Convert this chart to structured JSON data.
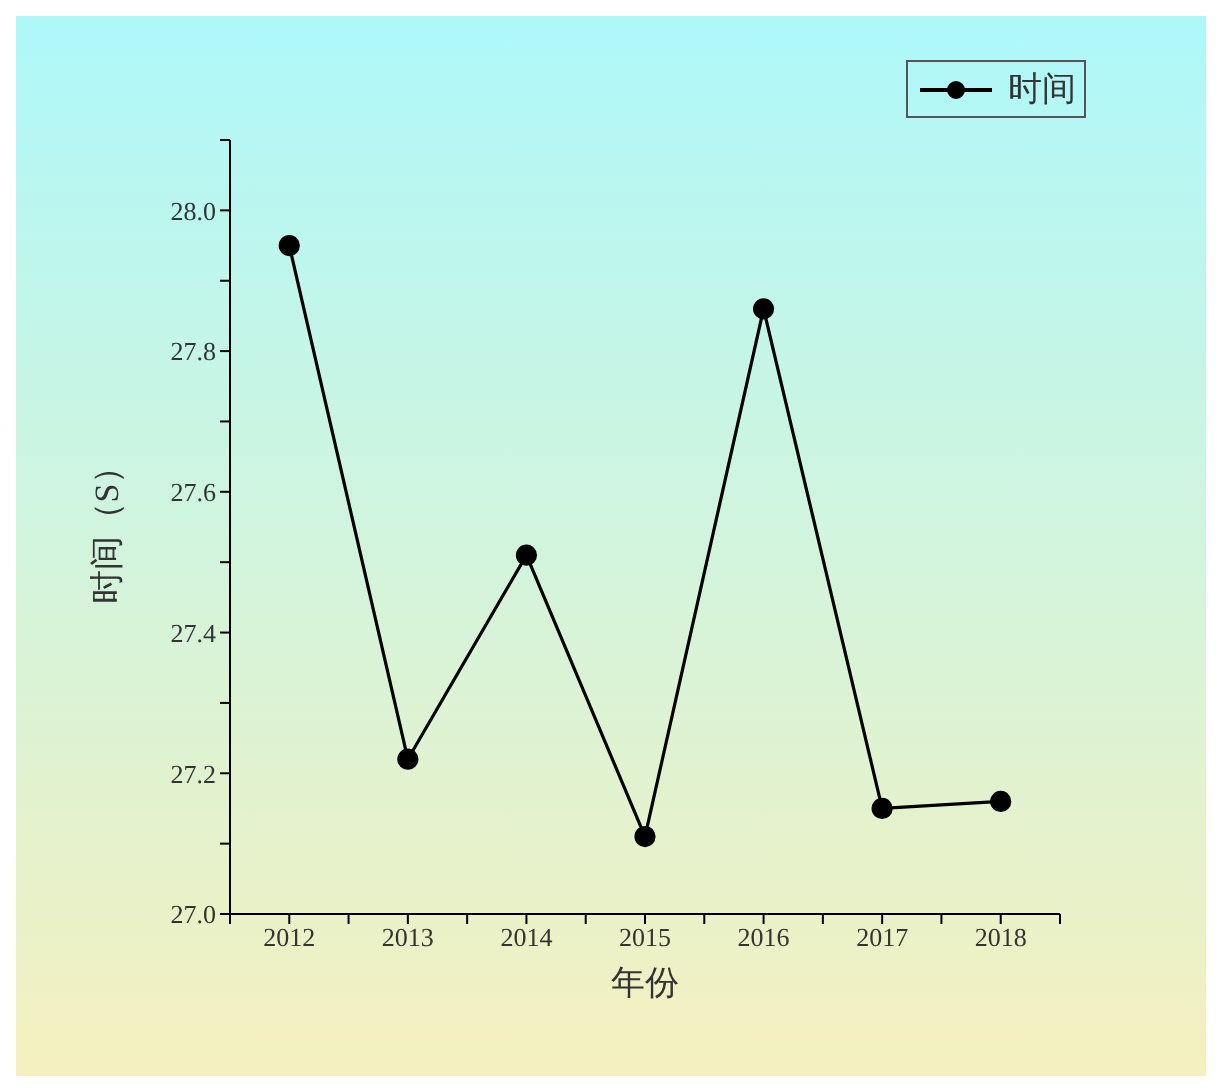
{
  "chart_data": {
    "type": "line",
    "xlabel": "年份",
    "ylabel": "时间（S）",
    "x": [
      2012,
      2013,
      2014,
      2015,
      2016,
      2017,
      2018
    ],
    "series": [
      {
        "name": "时间",
        "color": "#000000",
        "values": [
          27.95,
          27.22,
          27.51,
          27.11,
          27.86,
          27.15,
          27.16
        ]
      }
    ],
    "xlim": [
      2011.5,
      2018.5
    ],
    "xticks": [
      {
        "value": 2011.5,
        "label": null
      },
      2012,
      {
        "value": 2012.5,
        "label": null
      },
      2013,
      {
        "value": 2013.5,
        "label": null
      },
      2014,
      {
        "value": 2014.5,
        "label": null
      },
      2015,
      {
        "value": 2015.5,
        "label": null
      },
      2016,
      {
        "value": 2016.5,
        "label": null
      },
      2017,
      {
        "value": 2017.5,
        "label": null
      },
      2018,
      {
        "value": 2018.5,
        "label": null
      }
    ],
    "ylim": [
      27.0,
      28.1
    ],
    "yticks": [
      {
        "value": 27.0,
        "label": "27.0"
      },
      {
        "value": 27.1,
        "label": null
      },
      {
        "value": 27.2,
        "label": "27.2"
      },
      {
        "value": 27.3,
        "label": null
      },
      {
        "value": 27.4,
        "label": "27.4"
      },
      {
        "value": 27.5,
        "label": null
      },
      {
        "value": 27.6,
        "label": "27.6"
      },
      {
        "value": 27.7,
        "label": null
      },
      {
        "value": 27.8,
        "label": "27.8"
      },
      {
        "value": 27.9,
        "label": null
      },
      {
        "value": 28.0,
        "label": "28.0"
      },
      {
        "value": 28.1,
        "label": null
      }
    ],
    "grid": false,
    "legend": "top right",
    "marker": "circle",
    "line_style": "solid"
  }
}
